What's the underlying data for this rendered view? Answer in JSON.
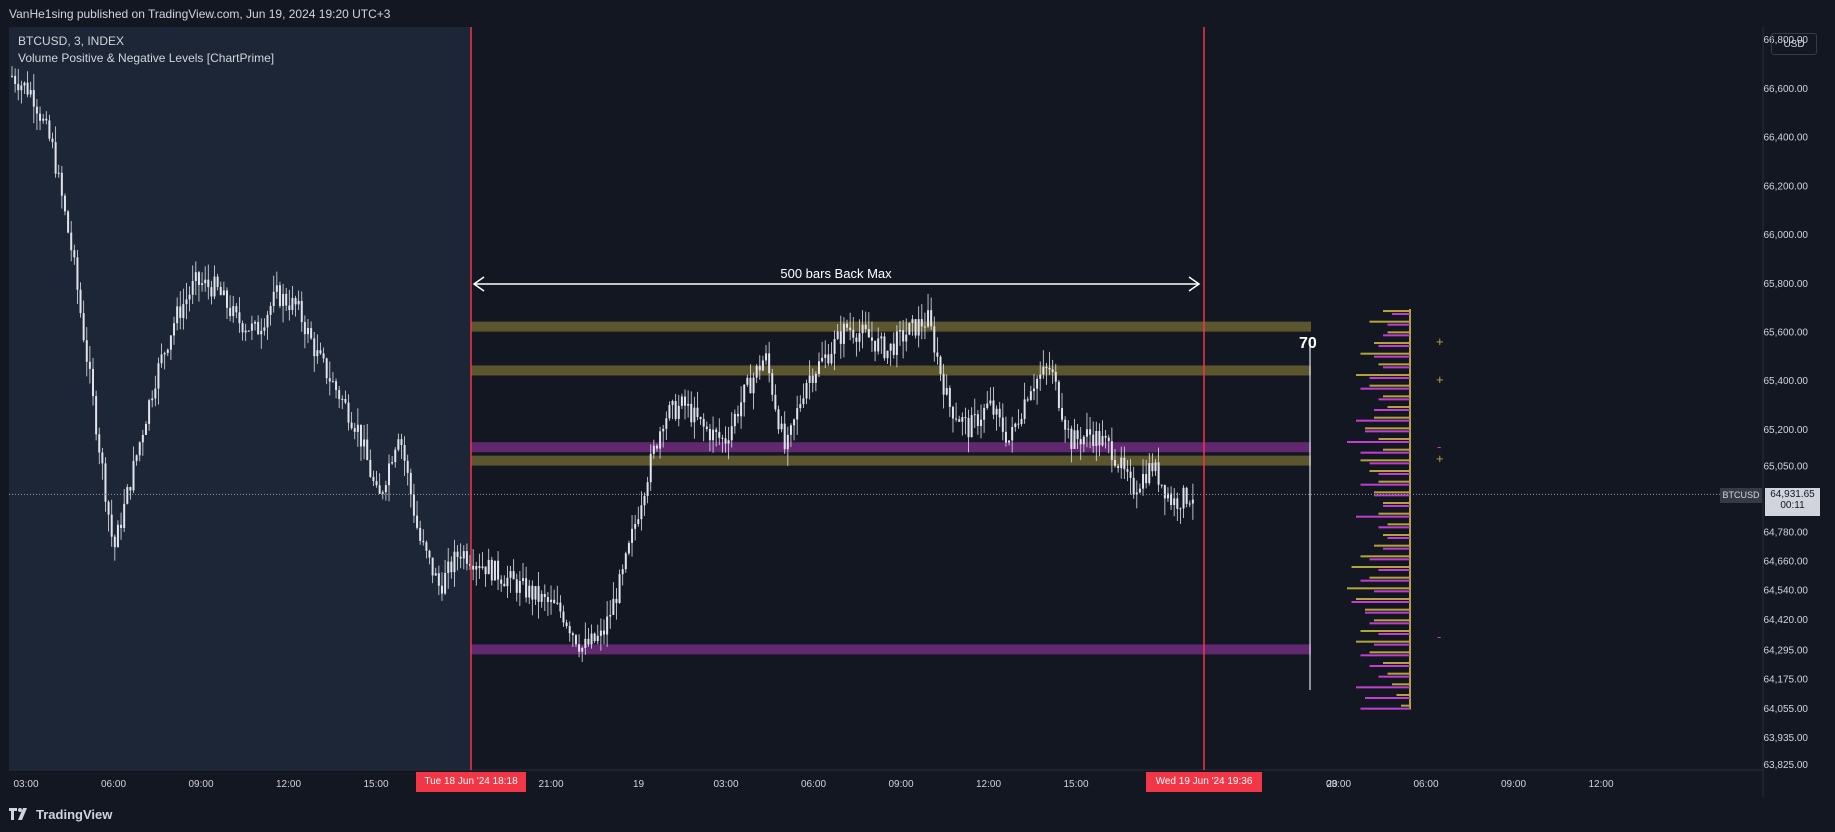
{
  "header": {
    "published_text": "VanHe1sing published on TradingView.com, Jun 19, 2024 19:20 UTC+3"
  },
  "legend": {
    "symbol_line": "BTCUSD, 3, INDEX",
    "indicator_line": "Volume Positive & Negative Levels [ChartPrime]"
  },
  "price_axis": {
    "currency": "USD",
    "ticks": [
      "66,800.00",
      "66,600.00",
      "66,400.00",
      "66,200.00",
      "66,000.00",
      "65,800.00",
      "65,600.00",
      "65,400.00",
      "65,200.00",
      "65,050.00",
      "64,931.65",
      "64,780.00",
      "64,660.00",
      "64,540.00",
      "64,420.00",
      "64,295.00",
      "64,175.00",
      "64,055.00",
      "63,935.00",
      "63,825.00"
    ],
    "last_price": "64,931.65",
    "countdown": "00:11",
    "symbol_tag": "BTCUSD"
  },
  "time_axis": {
    "ticks": [
      "03:00",
      "06:00",
      "09:00",
      "12:00",
      "15:00",
      "21:00",
      "19",
      "03:00",
      "06:00",
      "09:00",
      "12:00",
      "15:00",
      "20",
      "03:00",
      "06:00",
      "09:00",
      "12:00"
    ],
    "range_start_label": "Tue 18 Jun '24   18:18",
    "range_end_label": "Wed 19 Jun '24   19:36"
  },
  "annotations": {
    "range_text": "500 bars Back Max",
    "count_label": "70",
    "markers": [
      "+",
      "+",
      "-",
      "+",
      "-"
    ]
  },
  "footer": {
    "brand": "TradingView"
  },
  "colors": {
    "background": "#131722",
    "shaded_region": "#1c2636",
    "range_line": "#f23645",
    "positive_level": "#b5a33d",
    "negative_level": "#c13fd0",
    "candle": "#e0e3eb"
  },
  "chart_data": {
    "type": "candlestick",
    "ylim": [
      63800,
      66850
    ],
    "price_levels": [
      {
        "type": "positive",
        "price": 65620
      },
      {
        "type": "positive",
        "price": 65440
      },
      {
        "type": "negative",
        "price": 65125
      },
      {
        "type": "positive",
        "price": 65070
      },
      {
        "type": "negative",
        "price": 64295
      }
    ],
    "price_path": [
      [
        0,
        66650
      ],
      [
        1,
        66580
      ],
      [
        2,
        66350
      ],
      [
        3,
        65900
      ],
      [
        4,
        65300
      ],
      [
        5,
        64700
      ],
      [
        6,
        65050
      ],
      [
        7,
        65400
      ],
      [
        8,
        65650
      ],
      [
        9,
        65800
      ],
      [
        10,
        65780
      ],
      [
        11,
        65650
      ],
      [
        12,
        65600
      ],
      [
        13,
        65750
      ],
      [
        14,
        65700
      ],
      [
        15,
        65500
      ],
      [
        16,
        65350
      ],
      [
        17,
        65200
      ],
      [
        18,
        64900
      ],
      [
        19,
        65200
      ],
      [
        20,
        64750
      ],
      [
        21,
        64550
      ],
      [
        22,
        64700
      ],
      [
        23,
        64650
      ],
      [
        24,
        64600
      ],
      [
        25,
        64550
      ],
      [
        26,
        64500
      ],
      [
        27,
        64450
      ],
      [
        28,
        64300
      ],
      [
        29,
        64350
      ],
      [
        30,
        64600
      ],
      [
        31,
        64950
      ],
      [
        32,
        65250
      ],
      [
        33,
        65300
      ],
      [
        34,
        65200
      ],
      [
        35,
        65150
      ],
      [
        36,
        65350
      ],
      [
        37,
        65500
      ],
      [
        38,
        65100
      ],
      [
        39,
        65400
      ],
      [
        40,
        65500
      ],
      [
        41,
        65620
      ],
      [
        42,
        65580
      ],
      [
        43,
        65520
      ],
      [
        44,
        65600
      ],
      [
        45,
        65650
      ],
      [
        46,
        65300
      ],
      [
        47,
        65200
      ],
      [
        48,
        65300
      ],
      [
        49,
        65150
      ],
      [
        50,
        65380
      ],
      [
        51,
        65450
      ],
      [
        52,
        65150
      ],
      [
        53,
        65180
      ],
      [
        54,
        65120
      ],
      [
        55,
        64950
      ],
      [
        56,
        65050
      ],
      [
        57,
        64900
      ],
      [
        58,
        64930
      ]
    ],
    "volume_profile": {
      "positive": [
        0.3,
        0.45,
        0.25,
        0.4,
        0.55,
        0.35,
        0.6,
        0.45,
        0.3,
        0.25,
        0.4,
        0.5,
        0.35,
        0.3,
        0.55,
        0.45,
        0.35,
        0.4,
        0.3,
        0.35,
        0.25,
        0.3,
        0.4,
        0.55,
        0.65,
        0.45,
        0.7,
        0.6,
        0.5,
        0.4,
        0.55,
        0.6,
        0.45,
        0.3,
        0.25,
        0.2,
        0.15,
        0.1
      ],
      "negative": [
        0.2,
        0.25,
        0.3,
        0.35,
        0.4,
        0.3,
        0.45,
        0.55,
        0.35,
        0.4,
        0.6,
        0.5,
        0.7,
        0.55,
        0.45,
        0.35,
        0.55,
        0.4,
        0.3,
        0.6,
        0.35,
        0.25,
        0.3,
        0.45,
        0.35,
        0.55,
        0.4,
        0.65,
        0.5,
        0.45,
        0.35,
        0.4,
        0.55,
        0.45,
        0.35,
        0.6,
        0.5,
        0.55
      ]
    }
  }
}
